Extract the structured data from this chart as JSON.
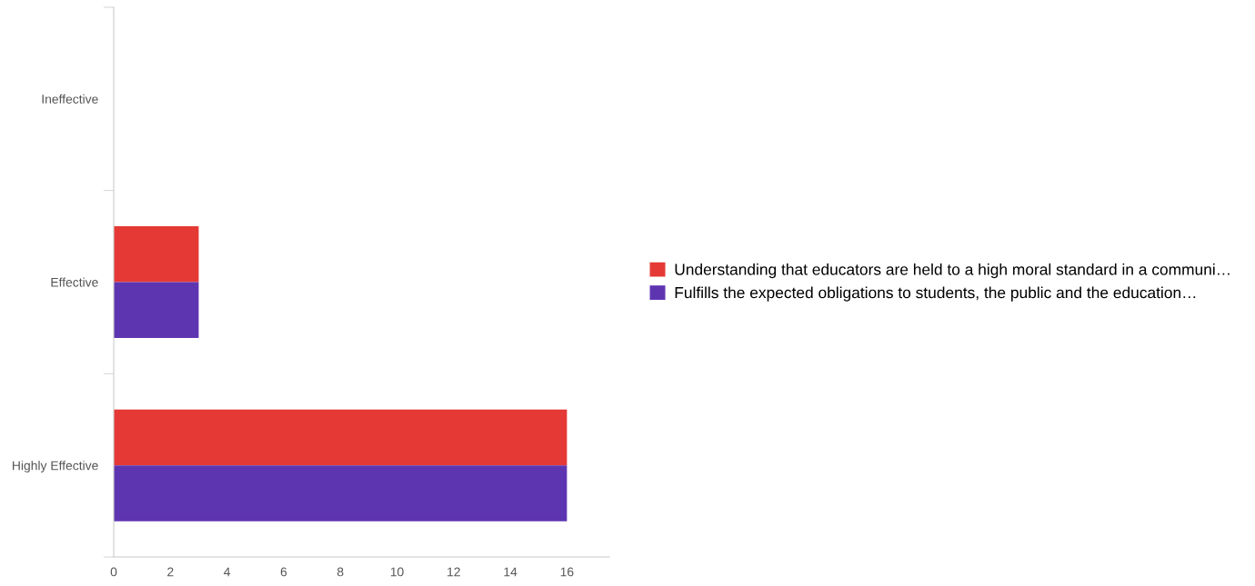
{
  "chart_data": {
    "type": "bar",
    "orientation": "horizontal",
    "categories": [
      "Ineffective",
      "Effective",
      "Highly Effective"
    ],
    "series": [
      {
        "name": "Understanding that educators are held to a high moral standard in a communi…",
        "color": "#e53935",
        "values": [
          0,
          3,
          16
        ]
      },
      {
        "name": "Fulfills the expected obligations to students, the public and the education…",
        "color": "#5e35b1",
        "values": [
          0,
          3,
          16
        ]
      }
    ],
    "xlim": [
      0,
      17.5
    ],
    "xticks": [
      0,
      2,
      4,
      6,
      8,
      10,
      12,
      14,
      16
    ],
    "grid": false,
    "legend": "right"
  }
}
